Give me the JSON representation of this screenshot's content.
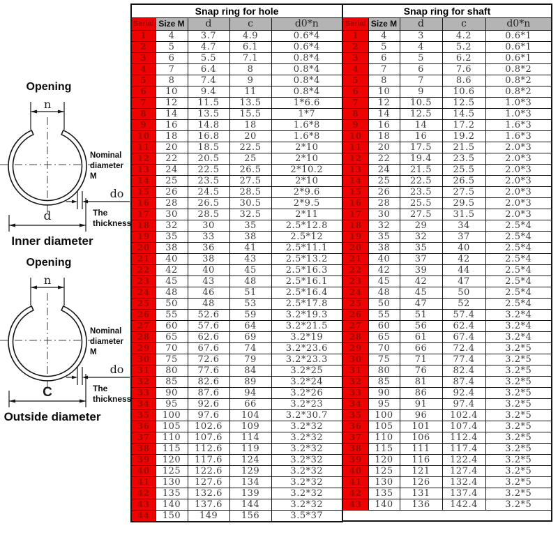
{
  "diagrams": [
    {
      "opening_label": "Opening",
      "n_label": "n",
      "nominal_line1": "Nominal",
      "nominal_line2": "diameter M",
      "d0_label": "do",
      "thickness_line1": "The",
      "thickness_line2": "thickness",
      "diameter_label": "d",
      "caption": "Inner diameter"
    },
    {
      "opening_label": "Opening",
      "n_label": "n",
      "nominal_line1": "Nominal",
      "nominal_line2": "diameter M",
      "d0_label": "do",
      "thickness_line1": "The",
      "thickness_line2": "thickness",
      "diameter_label": "C",
      "caption": "Outside diameter"
    }
  ],
  "tables": [
    {
      "title": "Snap ring for hole",
      "columns": [
        "Serial",
        "Size M",
        "d",
        "c",
        "d0*n"
      ],
      "trailing_empty_row": false,
      "rows": [
        [
          "1",
          "4",
          "3.7",
          "4.9",
          "0.6*4"
        ],
        [
          "2",
          "5",
          "4.7",
          "6.1",
          "0.6*4"
        ],
        [
          "3",
          "6",
          "5.5",
          "7.1",
          "0.8*4"
        ],
        [
          "4",
          "7",
          "6.4",
          "8",
          "0.8*4"
        ],
        [
          "5",
          "8",
          "7.4",
          "9",
          "0.8*4"
        ],
        [
          "6",
          "10",
          "9.4",
          "11",
          "0.8*4"
        ],
        [
          "7",
          "12",
          "11.5",
          "13.5",
          "1*6.6"
        ],
        [
          "8",
          "14",
          "13.5",
          "15.5",
          "1*7"
        ],
        [
          "9",
          "16",
          "14.8",
          "18",
          "1.6*8"
        ],
        [
          "10",
          "18",
          "16.8",
          "20",
          "1.6*8"
        ],
        [
          "11",
          "20",
          "18.5",
          "22.5",
          "2*10"
        ],
        [
          "12",
          "22",
          "20.5",
          "25",
          "2*10"
        ],
        [
          "13",
          "24",
          "22.5",
          "26.5",
          "2*10.2"
        ],
        [
          "14",
          "25",
          "23.5",
          "27.5",
          "2*10"
        ],
        [
          "15",
          "26",
          "24.5",
          "28.5",
          "2*9.6"
        ],
        [
          "16",
          "28",
          "26.5",
          "30.5",
          "2*9.5"
        ],
        [
          "17",
          "30",
          "28.5",
          "32.5",
          "2*11"
        ],
        [
          "18",
          "32",
          "30",
          "35",
          "2.5*12.8"
        ],
        [
          "19",
          "35",
          "33",
          "38",
          "2.5*12"
        ],
        [
          "20",
          "38",
          "36",
          "41",
          "2.5*11.1"
        ],
        [
          "21",
          "40",
          "38",
          "43",
          "2.5*13.2"
        ],
        [
          "22",
          "42",
          "40",
          "45",
          "2.5*16.3"
        ],
        [
          "23",
          "45",
          "43",
          "48",
          "2.5*16.1"
        ],
        [
          "24",
          "48",
          "46",
          "51",
          "2.5*16.4"
        ],
        [
          "25",
          "50",
          "48",
          "53",
          "2.5*17.8"
        ],
        [
          "26",
          "55",
          "52.6",
          "59",
          "3.2*19.3"
        ],
        [
          "27",
          "60",
          "57.6",
          "64",
          "3.2*21.5"
        ],
        [
          "28",
          "65",
          "62.6",
          "69",
          "3.2*19"
        ],
        [
          "29",
          "70",
          "67.6",
          "74",
          "3.2*23.6"
        ],
        [
          "30",
          "75",
          "72.6",
          "79",
          "3.2*23.3"
        ],
        [
          "31",
          "80",
          "77.6",
          "84",
          "3.2*25"
        ],
        [
          "32",
          "85",
          "82.6",
          "89",
          "3.2*24"
        ],
        [
          "33",
          "90",
          "87.6",
          "94",
          "3.2*26"
        ],
        [
          "34",
          "95",
          "92.6",
          "66",
          "3.2*23"
        ],
        [
          "35",
          "100",
          "97.6",
          "104",
          "3.2*30.7"
        ],
        [
          "36",
          "105",
          "102.6",
          "109",
          "3.2*32"
        ],
        [
          "37",
          "110",
          "107.6",
          "114",
          "3.2*32"
        ],
        [
          "38",
          "115",
          "112.6",
          "119",
          "3.2*32"
        ],
        [
          "39",
          "120",
          "117.6",
          "124",
          "3.2*32"
        ],
        [
          "40",
          "125",
          "122.6",
          "129",
          "3.2*32"
        ],
        [
          "41",
          "130",
          "127.6",
          "134",
          "3.2*32"
        ],
        [
          "42",
          "135",
          "132.6",
          "139",
          "3.2*32"
        ],
        [
          "43",
          "140",
          "137.6",
          "144",
          "3.2*32"
        ],
        [
          "44",
          "150",
          "149",
          "156",
          "3.5*37"
        ]
      ]
    },
    {
      "title": "Snap ring for shaft",
      "columns": [
        "Serial",
        "Size M",
        "d",
        "c",
        "d0*n"
      ],
      "trailing_empty_row": true,
      "rows": [
        [
          "1",
          "4",
          "3",
          "4.2",
          "0.6*1"
        ],
        [
          "2",
          "5",
          "4",
          "5.2",
          "0.6*1"
        ],
        [
          "3",
          "6",
          "5",
          "6.2",
          "0.6*1"
        ],
        [
          "4",
          "7",
          "6",
          "7.6",
          "0.8*2"
        ],
        [
          "5",
          "8",
          "7",
          "8.6",
          "0.8*2"
        ],
        [
          "6",
          "10",
          "9",
          "10.6",
          "0.8*2"
        ],
        [
          "7",
          "12",
          "10.5",
          "12.5",
          "1.0*3"
        ],
        [
          "8",
          "14",
          "12.5",
          "14.5",
          "1.0*3"
        ],
        [
          "9",
          "16",
          "14",
          "17.2",
          "1.6*3"
        ],
        [
          "10",
          "18",
          "16",
          "19.2",
          "1.6*3"
        ],
        [
          "11",
          "20",
          "17.5",
          "21.5",
          "2.0*3"
        ],
        [
          "12",
          "22",
          "19.4",
          "23.5",
          "2.0*3"
        ],
        [
          "13",
          "24",
          "21.5",
          "25.5",
          "2.0*3"
        ],
        [
          "14",
          "25",
          "22.5",
          "26.5",
          "2.0*3"
        ],
        [
          "15",
          "26",
          "23.5",
          "27.5",
          "2.0*3"
        ],
        [
          "16",
          "28",
          "25.5",
          "29.5",
          "2.0*3"
        ],
        [
          "17",
          "30",
          "27.5",
          "31.5",
          "2.0*3"
        ],
        [
          "18",
          "32",
          "29",
          "34",
          "2.5*4"
        ],
        [
          "19",
          "35",
          "32",
          "37",
          "2.5*4"
        ],
        [
          "20",
          "38",
          "35",
          "40",
          "2.5*4"
        ],
        [
          "21",
          "40",
          "37",
          "42",
          "2.5*4"
        ],
        [
          "22",
          "42",
          "39",
          "44",
          "2.5*4"
        ],
        [
          "23",
          "45",
          "42",
          "47",
          "2.5*4"
        ],
        [
          "24",
          "48",
          "45",
          "50",
          "2.5*4"
        ],
        [
          "25",
          "50",
          "47",
          "52",
          "2.5*4"
        ],
        [
          "26",
          "55",
          "51",
          "57.4",
          "3.2*4"
        ],
        [
          "27",
          "60",
          "56",
          "62.4",
          "3.2*4"
        ],
        [
          "28",
          "65",
          "61",
          "67.4",
          "3.2*4"
        ],
        [
          "29",
          "70",
          "66",
          "72.4",
          "3.2*5"
        ],
        [
          "30",
          "75",
          "71",
          "77.4",
          "3.2*5"
        ],
        [
          "31",
          "80",
          "76",
          "82.4",
          "3.2*5"
        ],
        [
          "32",
          "85",
          "81",
          "87.4",
          "3.2*5"
        ],
        [
          "33",
          "90",
          "86",
          "92.4",
          "3.2*5"
        ],
        [
          "34",
          "95",
          "91",
          "97.4",
          "3.2*5"
        ],
        [
          "35",
          "100",
          "96",
          "102.4",
          "3.2*5"
        ],
        [
          "36",
          "105",
          "101",
          "107.4",
          "3.2*5"
        ],
        [
          "37",
          "110",
          "106",
          "112.4",
          "3.2*5"
        ],
        [
          "38",
          "115",
          "111",
          "117.4",
          "3.2*5"
        ],
        [
          "39",
          "120",
          "116",
          "122.4",
          "3.2*5"
        ],
        [
          "40",
          "125",
          "121",
          "127.4",
          "3.2*5"
        ],
        [
          "41",
          "130",
          "126",
          "132.4",
          "3.2*5"
        ],
        [
          "42",
          "135",
          "131",
          "137.4",
          "3.2*5"
        ],
        [
          "43",
          "140",
          "136",
          "142.4",
          "3.2*5"
        ]
      ]
    }
  ],
  "colors": {
    "serial_bg": "#ee0202",
    "serial_text": "#9a0b00",
    "header_bg": "#b4b4b4",
    "border": "#141414"
  }
}
